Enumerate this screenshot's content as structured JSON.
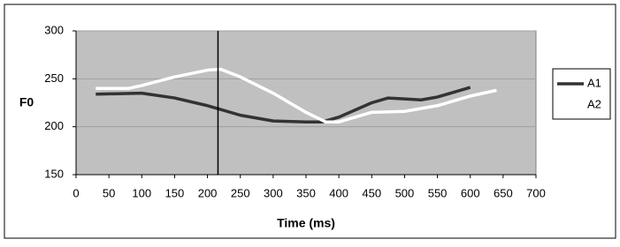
{
  "chart_data": {
    "type": "line",
    "x_label": "Time (ms)",
    "y_label": "F0",
    "xlim": [
      0,
      700
    ],
    "xticks": [
      0,
      50,
      100,
      150,
      200,
      250,
      300,
      350,
      400,
      450,
      500,
      550,
      600,
      650,
      700
    ],
    "ylim": [
      150,
      300
    ],
    "yticks": [
      150,
      200,
      250,
      300
    ],
    "grid": true,
    "legend": "right",
    "vline_x": 216,
    "series": [
      {
        "name": "A1",
        "color": "#333333",
        "x": [
          30,
          100,
          150,
          200,
          250,
          300,
          350,
          375,
          400,
          450,
          475,
          500,
          525,
          550,
          600
        ],
        "values": [
          234,
          235,
          230,
          222,
          212,
          206,
          205,
          205,
          210,
          225,
          230,
          229,
          228,
          231,
          241
        ]
      },
      {
        "name": "A2",
        "color": "#ffffff",
        "x": [
          30,
          80,
          100,
          150,
          200,
          220,
          250,
          300,
          350,
          380,
          400,
          450,
          500,
          550,
          600,
          640
        ],
        "values": [
          240,
          240,
          243,
          252,
          259,
          260,
          252,
          235,
          215,
          205,
          205,
          215,
          216,
          222,
          232,
          238
        ]
      }
    ]
  }
}
